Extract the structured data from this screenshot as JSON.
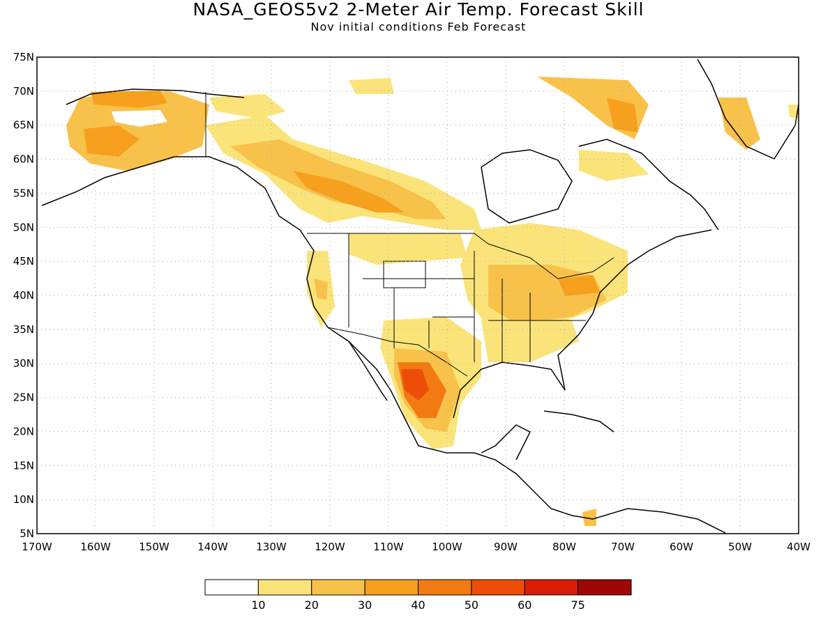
{
  "title": "NASA_GEOS5v2 2-Meter Air Temp. Forecast Skill",
  "subtitle": "Nov initial conditions  Feb Forecast",
  "map": {
    "lat_labels": [
      "75N",
      "70N",
      "65N",
      "60N",
      "55N",
      "50N",
      "45N",
      "40N",
      "35N",
      "30N",
      "25N",
      "20N",
      "15N",
      "10N",
      "5N"
    ],
    "lon_labels": [
      "170W",
      "160W",
      "150W",
      "140W",
      "130W",
      "120W",
      "110W",
      "100W",
      "90W",
      "80W",
      "70W",
      "60W",
      "50W",
      "40W"
    ],
    "lat_range": [
      5,
      75
    ],
    "lon_range": [
      -170,
      -40
    ],
    "grid": "dotted"
  },
  "legend": {
    "labels": [
      "10",
      "20",
      "30",
      "40",
      "50",
      "60",
      "75"
    ],
    "colors": [
      "#ffffff",
      "#fae47a",
      "#f8c24a",
      "#f6a01e",
      "#f27a10",
      "#ee4d08",
      "#d81e06",
      "#a00808"
    ]
  },
  "colors": {
    "coast": "#000000",
    "grid": "#aaaaaa"
  }
}
